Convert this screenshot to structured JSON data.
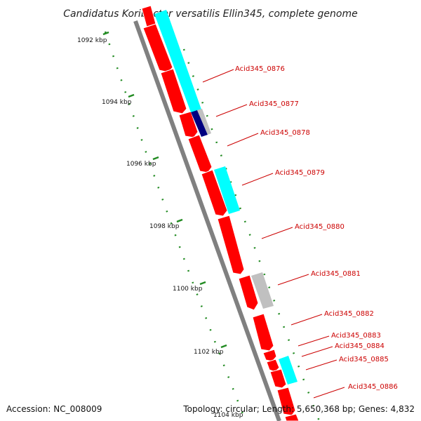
{
  "title": "Candidatus Koribacter versatilis Ellin345, complete genome",
  "footer": {
    "accession": "Accession: NC_008009",
    "summary": "Topology: circular; Length: 5,650,368 bp; Genes: 4,832"
  },
  "ticks": [
    "1092 kbp",
    "1094 kbp",
    "1096 kbp",
    "1098 kbp",
    "1100 kbp",
    "1102 kbp",
    "1104 kbp"
  ],
  "genes": [
    "Acid345_0876",
    "Acid345_0877",
    "Acid345_0878",
    "Acid345_0879",
    "Acid345_0880",
    "Acid345_0881",
    "Acid345_0882",
    "Acid345_0883",
    "Acid345_0884",
    "Acid345_0885",
    "Acid345_0886"
  ],
  "colors": {
    "cds": "#ff0000",
    "gc_high": "#00ffff",
    "gc_mid": "#c0c0c0",
    "gc_low": "#000080",
    "backbone": "#808080",
    "ticks": "#228b22",
    "labels": "#cc0000"
  }
}
